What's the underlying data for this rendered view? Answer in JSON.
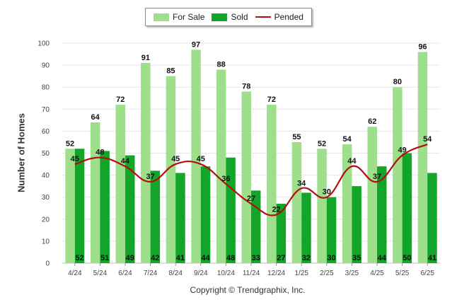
{
  "chart_data": {
    "type": "bar",
    "categories": [
      "4/24",
      "5/24",
      "6/24",
      "7/24",
      "8/24",
      "9/24",
      "10/24",
      "11/24",
      "12/24",
      "1/25",
      "2/25",
      "3/25",
      "4/25",
      "5/25",
      "6/25"
    ],
    "series": [
      {
        "name": "For Sale",
        "type": "bar",
        "color": "#9ddf8a",
        "values": [
          52,
          64,
          72,
          91,
          85,
          97,
          88,
          78,
          72,
          55,
          52,
          54,
          62,
          80,
          96
        ]
      },
      {
        "name": "Sold",
        "type": "bar",
        "color": "#13a52a",
        "values": [
          52,
          51,
          49,
          42,
          41,
          44,
          48,
          33,
          27,
          32,
          30,
          35,
          44,
          50,
          41
        ]
      },
      {
        "name": "Pended",
        "type": "line",
        "color": "#b30f0f",
        "values": [
          45,
          48,
          44,
          37,
          45,
          45,
          36,
          27,
          22,
          34,
          30,
          44,
          37,
          49,
          54
        ]
      }
    ],
    "ylim": [
      0,
      100
    ],
    "yticks": [
      0,
      10,
      20,
      30,
      40,
      50,
      60,
      70,
      80,
      90,
      100
    ],
    "ylabel": "Number of Homes",
    "xlabel": "",
    "grid": true,
    "legend_position": "top-center"
  },
  "footer": {
    "copyright": "Copyright © Trendgraphix, Inc."
  }
}
